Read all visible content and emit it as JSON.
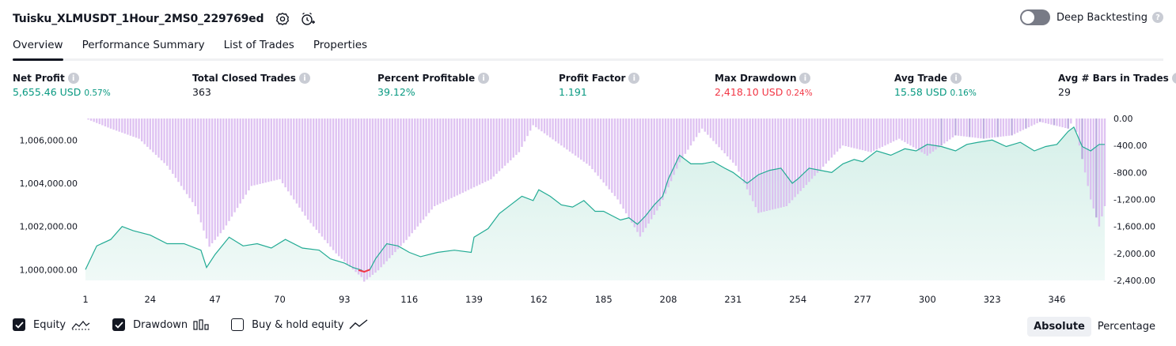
{
  "header": {
    "title": "Tuisku_XLMUSDT_1Hour_2MS0_229769ed",
    "settings_icon": "gear-icon",
    "alert_icon": "add-alert-clock-icon",
    "deep_backtesting_label": "Deep Backtesting",
    "deep_backtesting_enabled": false
  },
  "tabs": [
    {
      "label": "Overview",
      "active": true
    },
    {
      "label": "Performance Summary",
      "active": false
    },
    {
      "label": "List of Trades",
      "active": false
    },
    {
      "label": "Properties",
      "active": false
    }
  ],
  "metrics": [
    {
      "label": "Net Profit",
      "value": "5,655.46 USD",
      "pct": "0.57%",
      "color": "#089981"
    },
    {
      "label": "Total Closed Trades",
      "value": "363",
      "pct": "",
      "color": "#131722"
    },
    {
      "label": "Percent Profitable",
      "value": "39.12%",
      "pct": "",
      "color": "#089981"
    },
    {
      "label": "Profit Factor",
      "value": "1.191",
      "pct": "",
      "color": "#089981"
    },
    {
      "label": "Max Drawdown",
      "value": "2,418.10 USD",
      "pct": "0.24%",
      "color": "#f23645"
    },
    {
      "label": "Avg Trade",
      "value": "15.58 USD",
      "pct": "0.16%",
      "color": "#089981"
    },
    {
      "label": "Avg # Bars in Trades",
      "value": "29",
      "pct": "",
      "color": "#131722"
    }
  ],
  "legend": {
    "equity_label": "Equity",
    "equity_checked": true,
    "drawdown_label": "Drawdown",
    "drawdown_checked": true,
    "buyhold_label": "Buy & hold equity",
    "buyhold_checked": false
  },
  "modes": {
    "absolute_label": "Absolute",
    "percentage_label": "Percentage",
    "active": "Absolute"
  },
  "colors": {
    "equity_line": "#22ab94",
    "equity_fill": "#d4efe8",
    "drawdown_bar": "#d9b8f0",
    "drawdown_bar_dark": "#b39ddb",
    "underwater": "#f23645",
    "text": "#131722"
  },
  "chart_data": {
    "type": "area",
    "x_tick_labels": [
      "1",
      "24",
      "47",
      "70",
      "93",
      "116",
      "139",
      "162",
      "185",
      "208",
      "231",
      "254",
      "277",
      "300",
      "323",
      "346"
    ],
    "xlim": [
      1,
      363
    ],
    "left_axis": {
      "tick_labels": [
        "1,006,000.00",
        "1,004,000.00",
        "1,002,000.00",
        "1,000,000.00"
      ],
      "ylim": [
        999500,
        1007000
      ]
    },
    "right_axis": {
      "tick_labels": [
        "0.00",
        "-400.00",
        "-800.00",
        "-1,200.00",
        "-1,600.00",
        "-2,000.00",
        "-2,400.00"
      ],
      "ylim": [
        -2400,
        0
      ]
    },
    "series": [
      {
        "name": "Equity",
        "kind": "line-area",
        "axis": "left",
        "x": [
          1,
          5,
          10,
          14,
          18,
          24,
          30,
          36,
          42,
          44,
          47,
          52,
          57,
          62,
          67,
          72,
          78,
          84,
          88,
          93,
          96,
          99,
          100,
          102,
          104,
          108,
          112,
          116,
          120,
          126,
          132,
          138,
          139,
          144,
          148,
          152,
          156,
          160,
          162,
          166,
          170,
          174,
          178,
          182,
          185,
          188,
          191,
          194,
          197,
          200,
          203,
          206,
          208,
          212,
          216,
          220,
          224,
          228,
          231,
          236,
          240,
          244,
          248,
          252,
          254,
          258,
          262,
          266,
          270,
          274,
          277,
          282,
          287,
          292,
          296,
          300,
          305,
          310,
          314,
          318,
          323,
          328,
          333,
          338,
          342,
          346,
          350,
          352,
          355,
          358,
          361,
          363
        ],
        "y": [
          1000000,
          1001100,
          1001400,
          1002000,
          1001800,
          1001600,
          1001200,
          1001200,
          1000900,
          1000100,
          1000700,
          1001500,
          1001100,
          1001200,
          1001000,
          1001400,
          1001000,
          1000900,
          1000500,
          1000300,
          1000100,
          999980,
          999900,
          1000000,
          1000500,
          1001200,
          1001100,
          1000800,
          1000600,
          1000800,
          1000900,
          1000800,
          1001500,
          1001900,
          1002600,
          1003000,
          1003400,
          1003200,
          1003700,
          1003400,
          1003000,
          1002900,
          1003200,
          1002700,
          1002700,
          1002500,
          1002300,
          1002400,
          1002100,
          1002500,
          1003000,
          1003400,
          1004200,
          1005300,
          1004900,
          1004900,
          1005000,
          1004700,
          1004500,
          1004000,
          1004400,
          1004600,
          1004700,
          1004000,
          1004200,
          1004700,
          1004600,
          1004500,
          1004900,
          1005100,
          1005000,
          1005500,
          1005300,
          1005600,
          1005500,
          1005800,
          1005700,
          1005500,
          1005800,
          1005900,
          1006000,
          1005700,
          1005900,
          1005500,
          1005700,
          1005800,
          1006400,
          1006600,
          1005700,
          1005500,
          1005800,
          1005800
        ]
      },
      {
        "name": "Drawdown",
        "kind": "bar",
        "axis": "right",
        "x": [
          1,
          10,
          20,
          30,
          40,
          45,
          50,
          60,
          70,
          80,
          90,
          95,
          99,
          100,
          105,
          115,
          125,
          135,
          145,
          155,
          160,
          165,
          170,
          180,
          190,
          198,
          205,
          212,
          220,
          232,
          240,
          250,
          260,
          270,
          280,
          290,
          300,
          310,
          320,
          330,
          340,
          350,
          352,
          358,
          361,
          363
        ],
        "y": [
          0,
          -150,
          -300,
          -700,
          -1300,
          -1900,
          -1650,
          -1000,
          -900,
          -1500,
          -2000,
          -2200,
          -2350,
          -2418,
          -2250,
          -1800,
          -1300,
          -1100,
          -900,
          -500,
          -100,
          -250,
          -400,
          -700,
          -1200,
          -1750,
          -1300,
          -650,
          -150,
          -700,
          -1400,
          -1300,
          -850,
          -400,
          -500,
          -300,
          -550,
          -250,
          -300,
          -250,
          -50,
          -150,
          0,
          -1200,
          -1600,
          -1300
        ]
      }
    ]
  }
}
